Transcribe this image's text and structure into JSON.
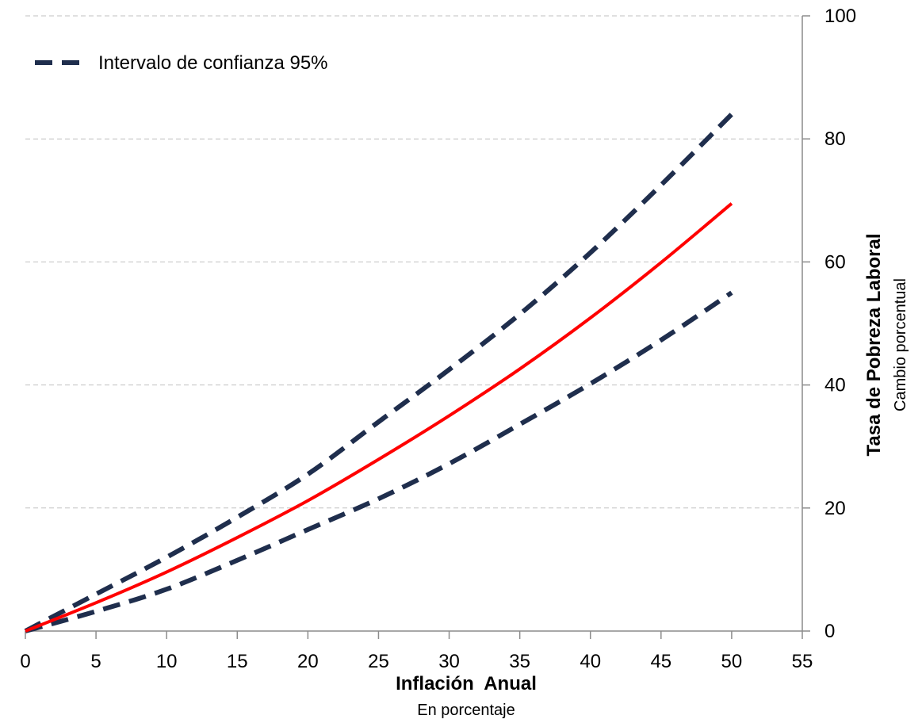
{
  "chart_data": {
    "type": "line",
    "xlabel": "Inflación  Anual",
    "xsublabel": "En porcentaje",
    "ylabel": "Tasa de Pobreza Laboral",
    "ysublabel": "Cambio porcentual",
    "xlim": [
      0,
      55
    ],
    "ylim": [
      0,
      100
    ],
    "xticks": [
      "0",
      "5",
      "10",
      "15",
      "20",
      "25",
      "30",
      "35",
      "40",
      "45",
      "50",
      "55"
    ],
    "yticks": [
      "0",
      "20",
      "40",
      "60",
      "80",
      "100"
    ],
    "y_axis_position": "right",
    "grid": "horizontal dashed",
    "legend": {
      "placement": "top-left",
      "entries": [
        "Intervalo de confianza 95%"
      ]
    },
    "x": [
      0,
      5,
      10,
      15,
      20,
      25,
      30,
      35,
      40,
      45,
      50
    ],
    "series": [
      {
        "role": "estimate",
        "color": "#ff0000",
        "style": "solid",
        "values": [
          0,
          4.6,
          9.6,
          15.2,
          21.2,
          27.9,
          35.0,
          42.6,
          50.9,
          59.9,
          69.5
        ]
      },
      {
        "role": "upper",
        "legend": "Intervalo de confianza 95%",
        "color": "#1f2e4d",
        "style": "dashed",
        "values": [
          0,
          6.0,
          12.0,
          18.5,
          25.5,
          34.0,
          42.5,
          51.5,
          61.5,
          72.5,
          84.0
        ]
      },
      {
        "role": "lower",
        "legend": "Intervalo de confianza 95%",
        "color": "#1f2e4d",
        "style": "dashed",
        "values": [
          0,
          3.2,
          6.8,
          11.5,
          16.5,
          21.5,
          27.2,
          33.6,
          40.2,
          47.3,
          55.0
        ]
      }
    ]
  }
}
